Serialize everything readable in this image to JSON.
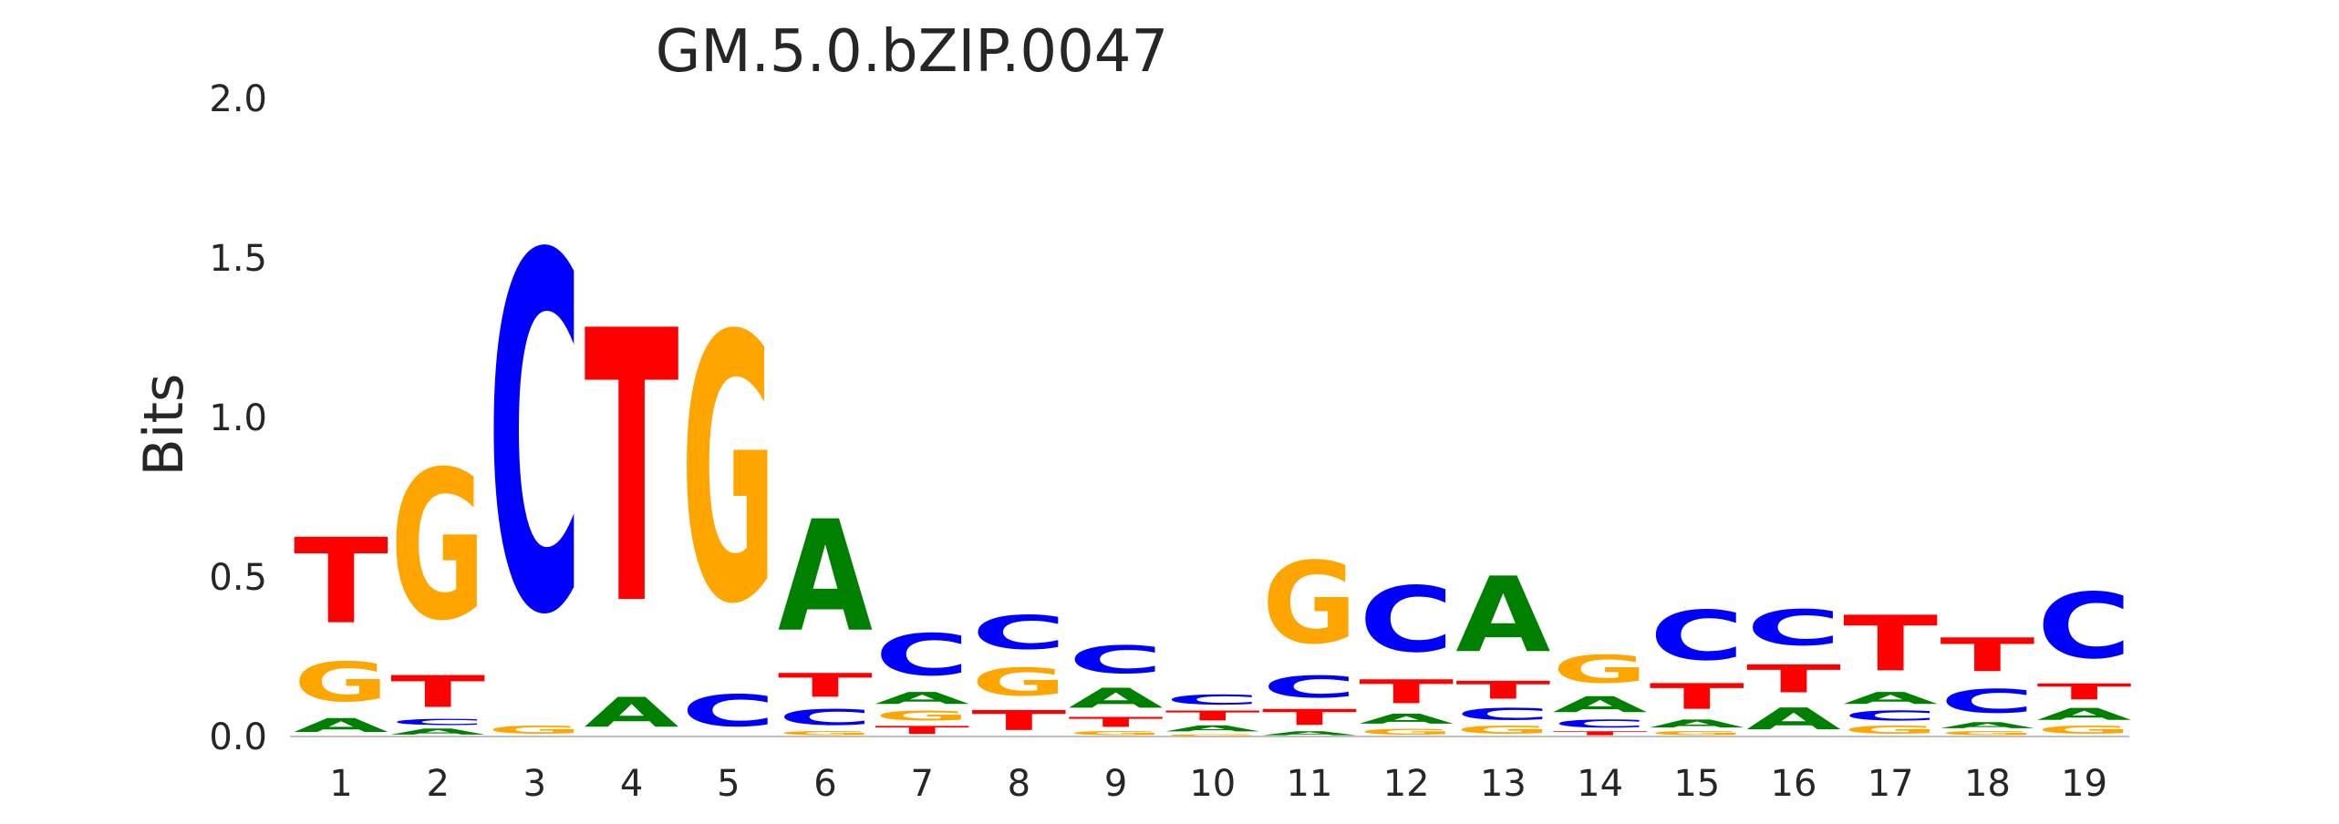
{
  "chart_data": {
    "type": "sequence-logo",
    "title": "GM.5.0.bZIP.0047",
    "xlabel": "",
    "ylabel": "Bits",
    "ylim": [
      0,
      2
    ],
    "yticks": [
      "0.0",
      "0.5",
      "1.0",
      "1.5",
      "2.0"
    ],
    "grid": false,
    "legend": "none",
    "colors": {
      "A": "#008000",
      "C": "#0000ff",
      "G": "#ffa500",
      "T": "#ff0000"
    },
    "positions": [
      {
        "pos": "1",
        "stack": [
          {
            "letter": "A",
            "bits": 0.07
          },
          {
            "letter": "G",
            "bits": 0.2
          },
          {
            "letter": "T",
            "bits": 0.43
          }
        ]
      },
      {
        "pos": "2",
        "stack": [
          {
            "letter": "A",
            "bits": 0.03
          },
          {
            "letter": "C",
            "bits": 0.03
          },
          {
            "letter": "T",
            "bits": 0.16
          },
          {
            "letter": "G",
            "bits": 0.75
          }
        ]
      },
      {
        "pos": "3",
        "stack": [
          {
            "letter": "G",
            "bits": 0.04
          },
          {
            "letter": "C",
            "bits": 1.79
          }
        ]
      },
      {
        "pos": "4",
        "stack": [
          {
            "letter": "A",
            "bits": 0.15
          },
          {
            "letter": "T",
            "bits": 1.37
          }
        ]
      },
      {
        "pos": "5",
        "stack": [
          {
            "letter": "C",
            "bits": 0.16
          },
          {
            "letter": "G",
            "bits": 1.34
          }
        ]
      },
      {
        "pos": "6",
        "stack": [
          {
            "letter": "G",
            "bits": 0.02
          },
          {
            "letter": "C",
            "bits": 0.08
          },
          {
            "letter": "T",
            "bits": 0.12
          },
          {
            "letter": "A",
            "bits": 0.56
          }
        ]
      },
      {
        "pos": "7",
        "stack": [
          {
            "letter": "T",
            "bits": 0.04
          },
          {
            "letter": "G",
            "bits": 0.05
          },
          {
            "letter": "A",
            "bits": 0.06
          },
          {
            "letter": "C",
            "bits": 0.21
          }
        ]
      },
      {
        "pos": "8",
        "stack": [
          {
            "letter": "T",
            "bits": 0.1
          },
          {
            "letter": "G",
            "bits": 0.14
          },
          {
            "letter": "C",
            "bits": 0.17
          }
        ]
      },
      {
        "pos": "9",
        "stack": [
          {
            "letter": "G",
            "bits": 0.02
          },
          {
            "letter": "T",
            "bits": 0.05
          },
          {
            "letter": "A",
            "bits": 0.1
          },
          {
            "letter": "C",
            "bits": 0.14
          }
        ]
      },
      {
        "pos": "10",
        "stack": [
          {
            "letter": "G",
            "bits": 0.01
          },
          {
            "letter": "A",
            "bits": 0.03
          },
          {
            "letter": "T",
            "bits": 0.05
          },
          {
            "letter": "C",
            "bits": 0.05
          }
        ]
      },
      {
        "pos": "11",
        "stack": [
          {
            "letter": "A",
            "bits": 0.02
          },
          {
            "letter": "T",
            "bits": 0.08
          },
          {
            "letter": "C",
            "bits": 0.11
          },
          {
            "letter": "G",
            "bits": 0.41
          }
        ]
      },
      {
        "pos": "12",
        "stack": [
          {
            "letter": "G",
            "bits": 0.03
          },
          {
            "letter": "A",
            "bits": 0.05
          },
          {
            "letter": "T",
            "bits": 0.12
          },
          {
            "letter": "C",
            "bits": 0.33
          }
        ]
      },
      {
        "pos": "13",
        "stack": [
          {
            "letter": "G",
            "bits": 0.04
          },
          {
            "letter": "C",
            "bits": 0.06
          },
          {
            "letter": "T",
            "bits": 0.09
          },
          {
            "letter": "A",
            "bits": 0.38
          }
        ]
      },
      {
        "pos": "14",
        "stack": [
          {
            "letter": "T",
            "bits": 0.02
          },
          {
            "letter": "C",
            "bits": 0.04
          },
          {
            "letter": "A",
            "bits": 0.08
          },
          {
            "letter": "G",
            "bits": 0.14
          }
        ]
      },
      {
        "pos": "15",
        "stack": [
          {
            "letter": "G",
            "bits": 0.02
          },
          {
            "letter": "A",
            "bits": 0.04
          },
          {
            "letter": "T",
            "bits": 0.13
          },
          {
            "letter": "C",
            "bits": 0.25
          }
        ]
      },
      {
        "pos": "16",
        "stack": [
          {
            "letter": "A",
            "bits": 0.11
          },
          {
            "letter": "T",
            "bits": 0.14
          },
          {
            "letter": "C",
            "bits": 0.18
          }
        ]
      },
      {
        "pos": "17",
        "stack": [
          {
            "letter": "G",
            "bits": 0.04
          },
          {
            "letter": "C",
            "bits": 0.05
          },
          {
            "letter": "A",
            "bits": 0.06
          },
          {
            "letter": "T",
            "bits": 0.28
          }
        ]
      },
      {
        "pos": "18",
        "stack": [
          {
            "letter": "G",
            "bits": 0.02
          },
          {
            "letter": "A",
            "bits": 0.03
          },
          {
            "letter": "C",
            "bits": 0.12
          },
          {
            "letter": "T",
            "bits": 0.17
          }
        ]
      },
      {
        "pos": "19",
        "stack": [
          {
            "letter": "G",
            "bits": 0.04
          },
          {
            "letter": "A",
            "bits": 0.06
          },
          {
            "letter": "T",
            "bits": 0.08
          },
          {
            "letter": "C",
            "bits": 0.33
          }
        ]
      }
    ]
  }
}
